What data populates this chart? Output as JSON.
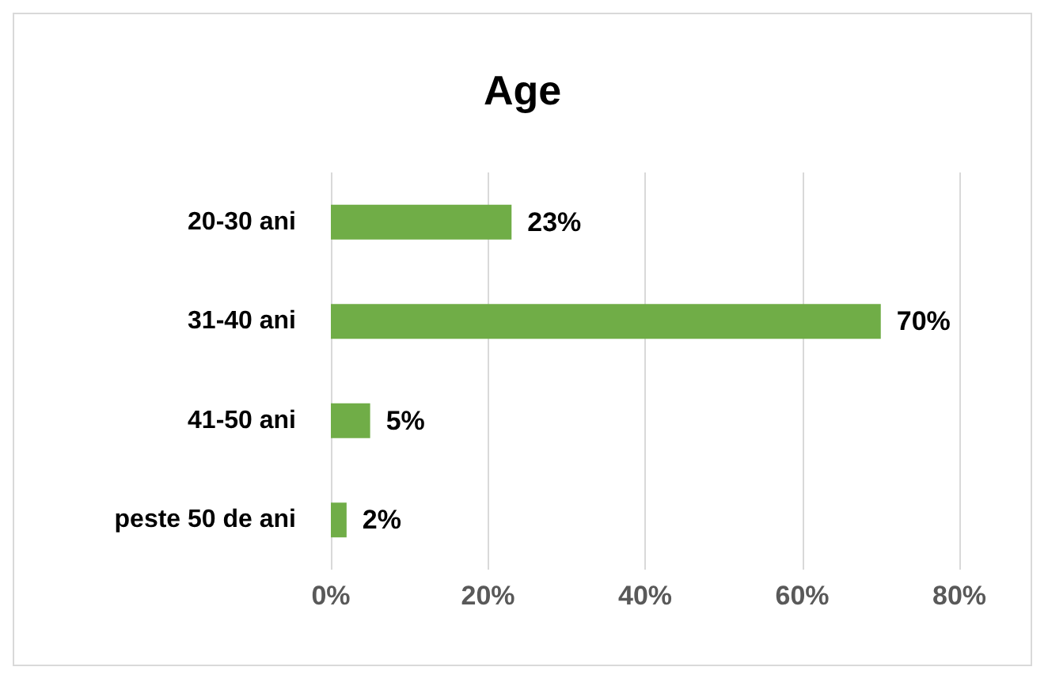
{
  "chart_data": {
    "type": "bar",
    "orientation": "horizontal",
    "title": "Age",
    "categories": [
      "20-30 ani",
      "31-40 ani",
      "41-50 ani",
      "peste 50 de ani"
    ],
    "values": [
      23,
      70,
      5,
      2
    ],
    "value_labels": [
      "23%",
      "70%",
      "5%",
      "2%"
    ],
    "color": "#70ad47",
    "xlim": [
      0,
      80
    ],
    "xticks": [
      {
        "value": 0,
        "label": "0%"
      },
      {
        "value": 20,
        "label": "20%"
      },
      {
        "value": 40,
        "label": "40%"
      },
      {
        "value": 60,
        "label": "60%"
      },
      {
        "value": 80,
        "label": "80%"
      }
    ],
    "grid": "x"
  }
}
